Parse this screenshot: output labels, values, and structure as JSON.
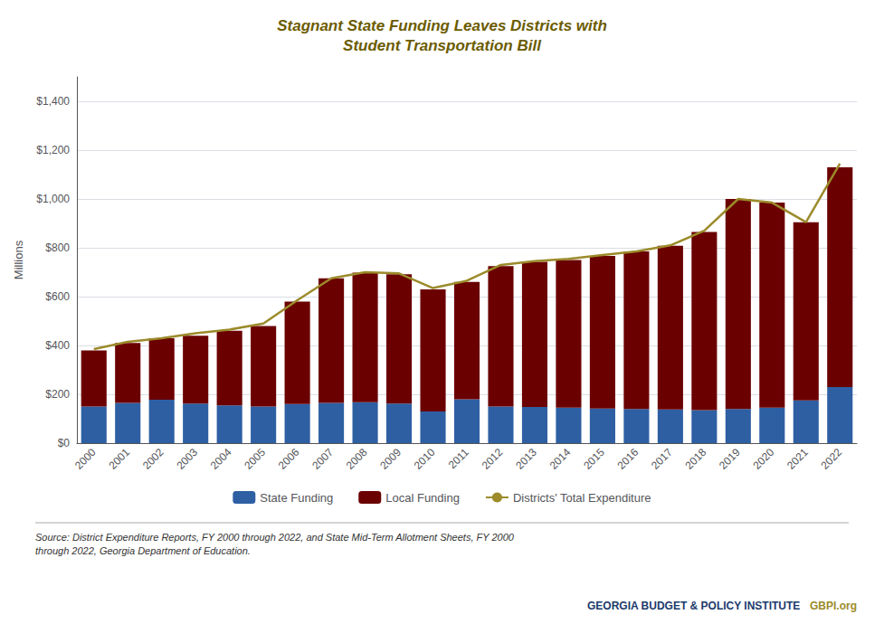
{
  "chart_data": {
    "type": "bar",
    "title": "Stagnant State Funding Leaves Districts with\nStudent Transportation Bill",
    "ylabel": "Millions",
    "categories": [
      "2000",
      "2001",
      "2002",
      "2003",
      "2004",
      "2005",
      "2006",
      "2007",
      "2008",
      "2009",
      "2010",
      "2011",
      "2012",
      "2013",
      "2014",
      "2015",
      "2016",
      "2017",
      "2018",
      "2019",
      "2020",
      "2021",
      "2022"
    ],
    "series": [
      {
        "name": "State Funding",
        "type": "bar",
        "color": "#2E5FA3",
        "values": [
          150,
          165,
          178,
          162,
          155,
          150,
          160,
          165,
          168,
          162,
          130,
          180,
          150,
          148,
          145,
          142,
          140,
          138,
          135,
          140,
          145,
          175,
          230
        ]
      },
      {
        "name": "Local Funding",
        "type": "bar",
        "color": "#6B0000",
        "values": [
          230,
          245,
          252,
          278,
          305,
          330,
          420,
          510,
          530,
          530,
          500,
          480,
          575,
          595,
          605,
          625,
          645,
          670,
          730,
          860,
          840,
          730,
          900
        ]
      },
      {
        "name": "Districts' Total Expenditure",
        "type": "line",
        "color": "#9B8B2B",
        "values": [
          385,
          415,
          430,
          450,
          465,
          490,
          585,
          675,
          700,
          695,
          635,
          665,
          730,
          745,
          755,
          770,
          785,
          810,
          870,
          1000,
          985,
          905,
          1145
        ]
      }
    ],
    "stacked": true,
    "ylim": [
      0,
      1500
    ],
    "yticks": [
      {
        "value": 0,
        "label": "$0"
      },
      {
        "value": 200,
        "label": "$200"
      },
      {
        "value": 400,
        "label": "$400"
      },
      {
        "value": 600,
        "label": "$600"
      },
      {
        "value": 800,
        "label": "$800"
      },
      {
        "value": 1000,
        "label": "$1,000"
      },
      {
        "value": 1200,
        "label": "$1,200"
      },
      {
        "value": 1400,
        "label": "$1,400"
      }
    ],
    "grid": true,
    "legend": "bottom",
    "annotations": [
      "Source: District Expenditure Reports, FY 2000 through 2022, and State Mid-Term Allotment Sheets, FY 2000\nthrough 2022, Georgia Department of Education.",
      "GEORGIA BUDGET & POLICY INSTITUTE",
      "GBPI.org"
    ]
  }
}
